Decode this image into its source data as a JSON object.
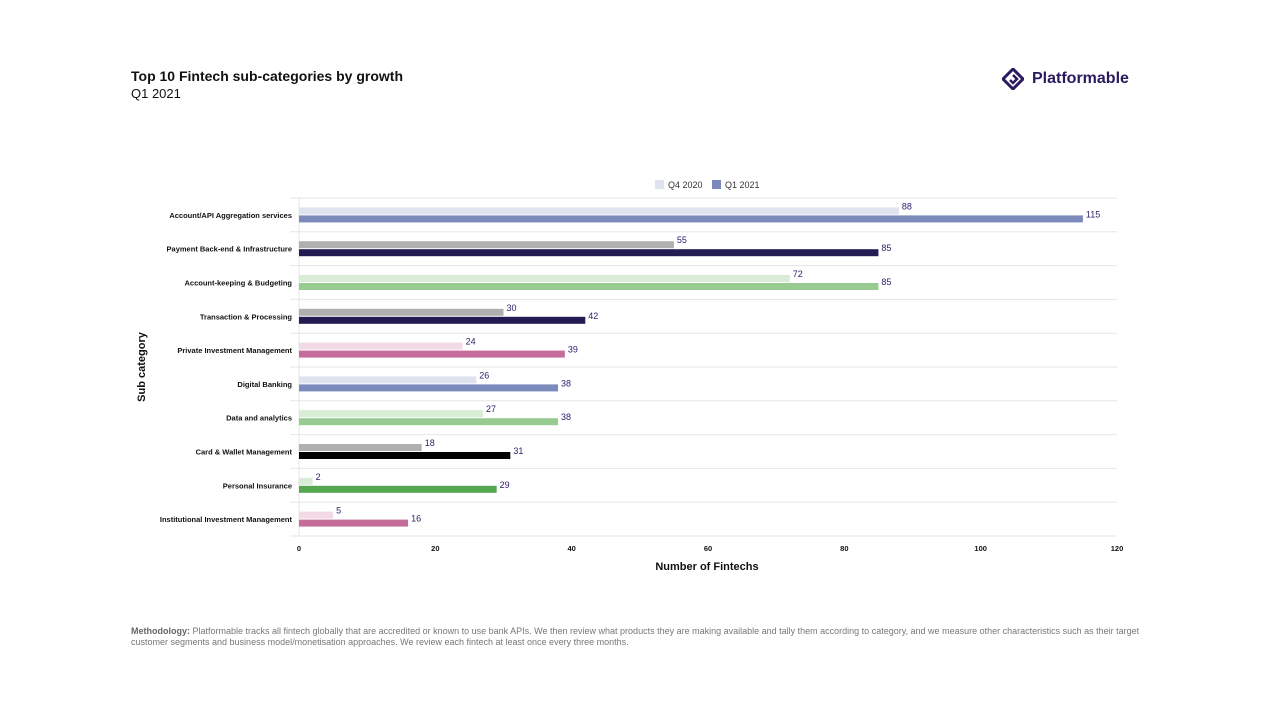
{
  "header": {
    "title": "Top 10 Fintech sub-categories by growth",
    "subtitle": "Q1 2021"
  },
  "logo": {
    "text": "Platformable",
    "color": "#2a1a5e"
  },
  "footer": {
    "label": "Methodology:",
    "text": " Platformable tracks all fintech globally that are accredited or known to use bank APIs. We then review what products they are making available and tally them according to category, and we measure other characteristics such as their target customer segments and business model/monetisation approaches. We review each fintech at least once every three months."
  },
  "chart_data": {
    "type": "bar",
    "orientation": "horizontal",
    "xlabel": "Number of Fintechs",
    "ylabel": "Sub category",
    "xlim": [
      0,
      120
    ],
    "xticks": [
      0,
      20,
      40,
      60,
      80,
      100,
      120
    ],
    "grid": "horizontal separators",
    "legend": "top-center",
    "categories": [
      "Account/API Aggregation services",
      "Payment Back-end & Infrastructure",
      "Account-keeping & Budgeting",
      "Transaction & Processing",
      "Private Investment Management",
      "Digital Banking",
      "Data and analytics",
      "Card & Wallet Management",
      "Personal Insurance",
      "Institutional Investment Management"
    ],
    "series": [
      {
        "name": "Q4 2020",
        "values": [
          88,
          55,
          72,
          30,
          24,
          26,
          27,
          18,
          2,
          5
        ],
        "colors": [
          "#dfe3ee",
          "#b0b0b0",
          "#d8ecd6",
          "#b0b0b0",
          "#f2d9e6",
          "#dfe3ee",
          "#d8ecd6",
          "#b0b0b0",
          "#d8ecd6",
          "#f2d9e6"
        ]
      },
      {
        "name": "Q1 2021",
        "values": [
          115,
          85,
          85,
          42,
          39,
          38,
          38,
          31,
          29,
          16
        ],
        "colors": [
          "#7b8aba",
          "#221c52",
          "#98cb92",
          "#221c52",
          "#c56d9a",
          "#7b8aba",
          "#98cb92",
          "#000000",
          "#55a651",
          "#c56d9a"
        ]
      }
    ],
    "legend_colors": [
      "#dfe3ee",
      "#7b8aba"
    ],
    "label_color": "#2d1b6b"
  }
}
